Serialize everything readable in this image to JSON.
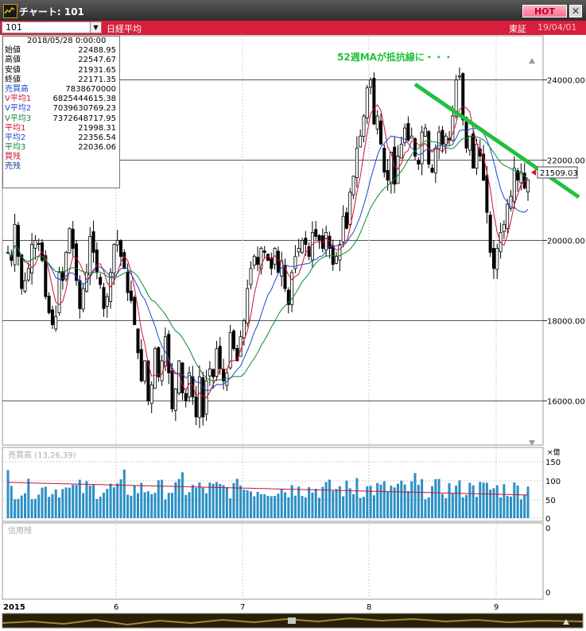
{
  "window": {
    "title": "チャート: 101",
    "hot_label": "HOT",
    "close_label": "✕"
  },
  "toolbar": {
    "code": "101",
    "security_name": "日経平均",
    "market": "東証",
    "date": "19/04/01"
  },
  "info_panel": {
    "timestamp": "2018/05/28 0:00:00",
    "rows": [
      {
        "label": "始値",
        "value": "22488.95",
        "color": "#000000"
      },
      {
        "label": "高値",
        "value": "22547.67",
        "color": "#000000"
      },
      {
        "label": "安値",
        "value": "21931.65",
        "color": "#000000"
      },
      {
        "label": "終値",
        "value": "22171.35",
        "color": "#000000"
      },
      {
        "label": "売買高",
        "value": "7838670000",
        "color": "#1f49c8"
      },
      {
        "label": "V平均1",
        "value": "6825444615.38",
        "color": "#d01030"
      },
      {
        "label": "V平均2",
        "value": "7039630769.23",
        "color": "#1f49c8"
      },
      {
        "label": "V平均3",
        "value": "7372648717.95",
        "color": "#0c8a2c"
      },
      {
        "label": "平均1",
        "value": "21998.31",
        "color": "#d01030"
      },
      {
        "label": "平均2",
        "value": "22356.54",
        "color": "#1f49c8"
      },
      {
        "label": "平均3",
        "value": "22036.06",
        "color": "#0c8a2c"
      },
      {
        "label": "買残",
        "value": "",
        "color": "#d01030"
      },
      {
        "label": "売残",
        "value": "",
        "color": "#1a3aa0"
      }
    ]
  },
  "annotation": {
    "text": "52週MAが抵抗線に・・・",
    "color": "#22c03c"
  },
  "current_price_label": "21509.03",
  "volume_panel": {
    "label": "売買高 (13,26,39)",
    "unit": "×億",
    "ticks": [
      "150",
      "100",
      "50",
      "0"
    ]
  },
  "margin_panel": {
    "label": "信用残",
    "ticks": [
      "0",
      "0"
    ]
  },
  "x_axis_labels": [
    "2015",
    "6",
    "7",
    "8",
    "9"
  ],
  "chart_data": {
    "type": "candlestick",
    "title": "日経平均",
    "y_ticks": [
      16000,
      18000,
      20000,
      22000,
      24000
    ],
    "ylim": [
      15000,
      25000
    ],
    "grid": true,
    "series": [
      {
        "name": "平均1",
        "color": "#d01030"
      },
      {
        "name": "平均2",
        "color": "#1f49c8"
      },
      {
        "name": "平均3",
        "color": "#0c8a2c"
      }
    ],
    "closes": [
      19700,
      19500,
      20400,
      19600,
      18800,
      19000,
      19300,
      19900,
      20000,
      19900,
      19500,
      18600,
      18200,
      17900,
      18100,
      19200,
      19000,
      19700,
      20300,
      19800,
      19000,
      18300,
      18800,
      19200,
      20100,
      19700,
      19200,
      18900,
      18300,
      18600,
      19200,
      19900,
      20000,
      19600,
      19300,
      18700,
      18500,
      17900,
      17200,
      16500,
      17000,
      16000,
      16400,
      17300,
      16600,
      17000,
      17600,
      16700,
      15800,
      16300,
      17000,
      16200,
      16000,
      16700,
      16100,
      15600,
      16600,
      15600,
      16500,
      16800,
      16600,
      17300,
      16800,
      16500,
      16700,
      17700,
      17300,
      17000,
      17600,
      18000,
      18800,
      19300,
      19600,
      19400,
      19800,
      19700,
      19500,
      19300,
      19800,
      19200,
      19500,
      18800,
      18400,
      19200,
      19600,
      19800,
      20000,
      19900,
      19600,
      20200,
      20100,
      20000,
      19800,
      20200,
      19800,
      19400,
      19600,
      19900,
      20600,
      20300,
      21200,
      21600,
      22300,
      22600,
      23100,
      23800,
      24000,
      22900,
      23100,
      22400,
      21700,
      21500,
      22200,
      21400,
      22100,
      22400,
      22800,
      22500,
      22600,
      22100,
      21900,
      22700,
      22800,
      21900,
      21700,
      22300,
      22700,
      22400,
      22600,
      22500,
      23100,
      24000,
      24100,
      23000,
      22300,
      22600,
      21800,
      22400,
      22100,
      21500,
      20700,
      19700,
      19300,
      19800,
      20200,
      20400,
      20900,
      21100,
      21800,
      21500,
      21700,
      21300,
      21509
    ]
  }
}
